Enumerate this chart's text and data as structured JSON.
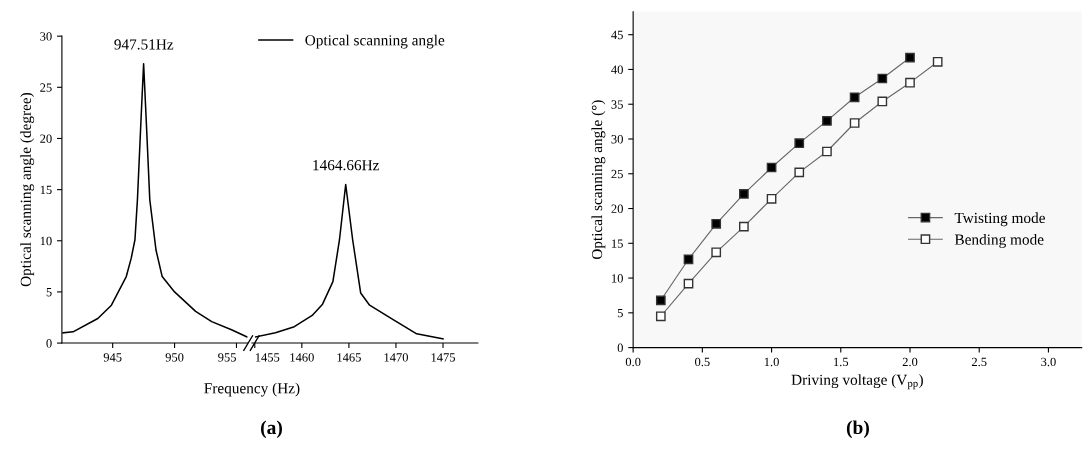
{
  "chart_data": [
    {
      "type": "line",
      "xlabel": "Frequency (Hz)",
      "ylabel": "Optical scanning angle (degree)",
      "xlim": [
        940.9,
        955.9
      ],
      "xticks": [
        945,
        950,
        955
      ],
      "ylim": [
        0,
        30
      ],
      "yticks": [
        0,
        5,
        10,
        15,
        20,
        25,
        30
      ],
      "grid": false,
      "line_style": "solid",
      "series": [
        {
          "color": "#000000",
          "x": [
            940.99,
            941.8,
            943.8,
            944.9,
            946.1,
            946.5,
            946.8,
            947.0,
            947.3,
            947.5,
            947.7,
            948.0,
            948.5,
            949.0,
            950.0,
            951.7,
            953.0,
            954.6,
            955.85
          ],
          "values": [
            1.0,
            1.1,
            2.4,
            3.7,
            6.5,
            8.3,
            10.1,
            14,
            22.1,
            27.3,
            22.1,
            14,
            9.1,
            6.5,
            5.0,
            3.1,
            2.1,
            1.3,
            0.6
          ]
        }
      ],
      "annotations": [
        {
          "text": "947.51Hz",
          "x": 947.51,
          "y": 27.3
        },
        "(a)"
      ]
    },
    {
      "type": "line",
      "xlim": [
        1454.7,
        1478.7
      ],
      "xticks": [
        1455,
        1460,
        1465,
        1470,
        1475
      ],
      "ylim": [
        0,
        30
      ],
      "tick_labels": "x",
      "grid": false,
      "legend": "top left",
      "line_style": "solid",
      "series": [
        {
          "name": "Optical scanning angle",
          "color": "#000000",
          "x": [
            1455.1,
            1457.2,
            1459.2,
            1461.1,
            1462.2,
            1463.3,
            1464.0,
            1464.66,
            1465.4,
            1466.25,
            1467.2,
            1469.7,
            1472.2,
            1475.0
          ],
          "values": [
            0.6,
            1.0,
            1.6,
            2.7,
            3.8,
            6.0,
            10.1,
            15.5,
            10.1,
            4.9,
            3.7,
            2.3,
            0.9,
            0.4
          ]
        }
      ],
      "annotations": [
        {
          "text": "1464.66Hz",
          "x": 1464.66,
          "y": 15.5
        }
      ]
    },
    {
      "type": "line",
      "xlabel": "Driving voltage (V$_{pp}$)",
      "ylabel": "Optical scanning angle (°)",
      "xlim": [
        0,
        3.24
      ],
      "xticks": [
        {
          "value": 0,
          "label": "0.0"
        },
        {
          "value": 0.5,
          "label": "0.5"
        },
        {
          "value": 1,
          "label": "1.0"
        },
        {
          "value": 1.5,
          "label": "1.5"
        },
        {
          "value": 2,
          "label": "2.0"
        },
        {
          "value": 2.5,
          "label": "2.5"
        },
        {
          "value": 3,
          "label": "3.0"
        }
      ],
      "ylim": [
        0,
        48.3
      ],
      "yticks": [
        0,
        5,
        10,
        15,
        20,
        25,
        30,
        35,
        40,
        45
      ],
      "grid": false,
      "legend": "center right",
      "marker": "square",
      "line_style": "solid",
      "series": [
        {
          "name": "Twisting mode",
          "color": "#000000",
          "x": [
            0.2,
            0.4,
            0.6,
            0.8,
            1.0,
            1.2,
            1.4,
            1.6,
            1.8,
            2.0
          ],
          "values": [
            6.8,
            12.7,
            17.8,
            22.1,
            25.9,
            29.4,
            32.6,
            36.0,
            38.7,
            41.7
          ]
        },
        {
          "name": "Bending mode",
          "color": "#ffffff",
          "x": [
            0.2,
            0.4,
            0.6,
            0.8,
            1.0,
            1.2,
            1.4,
            1.6,
            1.8,
            2.0,
            2.2
          ],
          "values": [
            4.5,
            9.2,
            13.7,
            17.4,
            21.4,
            25.2,
            28.2,
            32.3,
            35.4,
            38.1,
            41.1
          ]
        }
      ],
      "annotations": [
        "(b)"
      ]
    }
  ]
}
